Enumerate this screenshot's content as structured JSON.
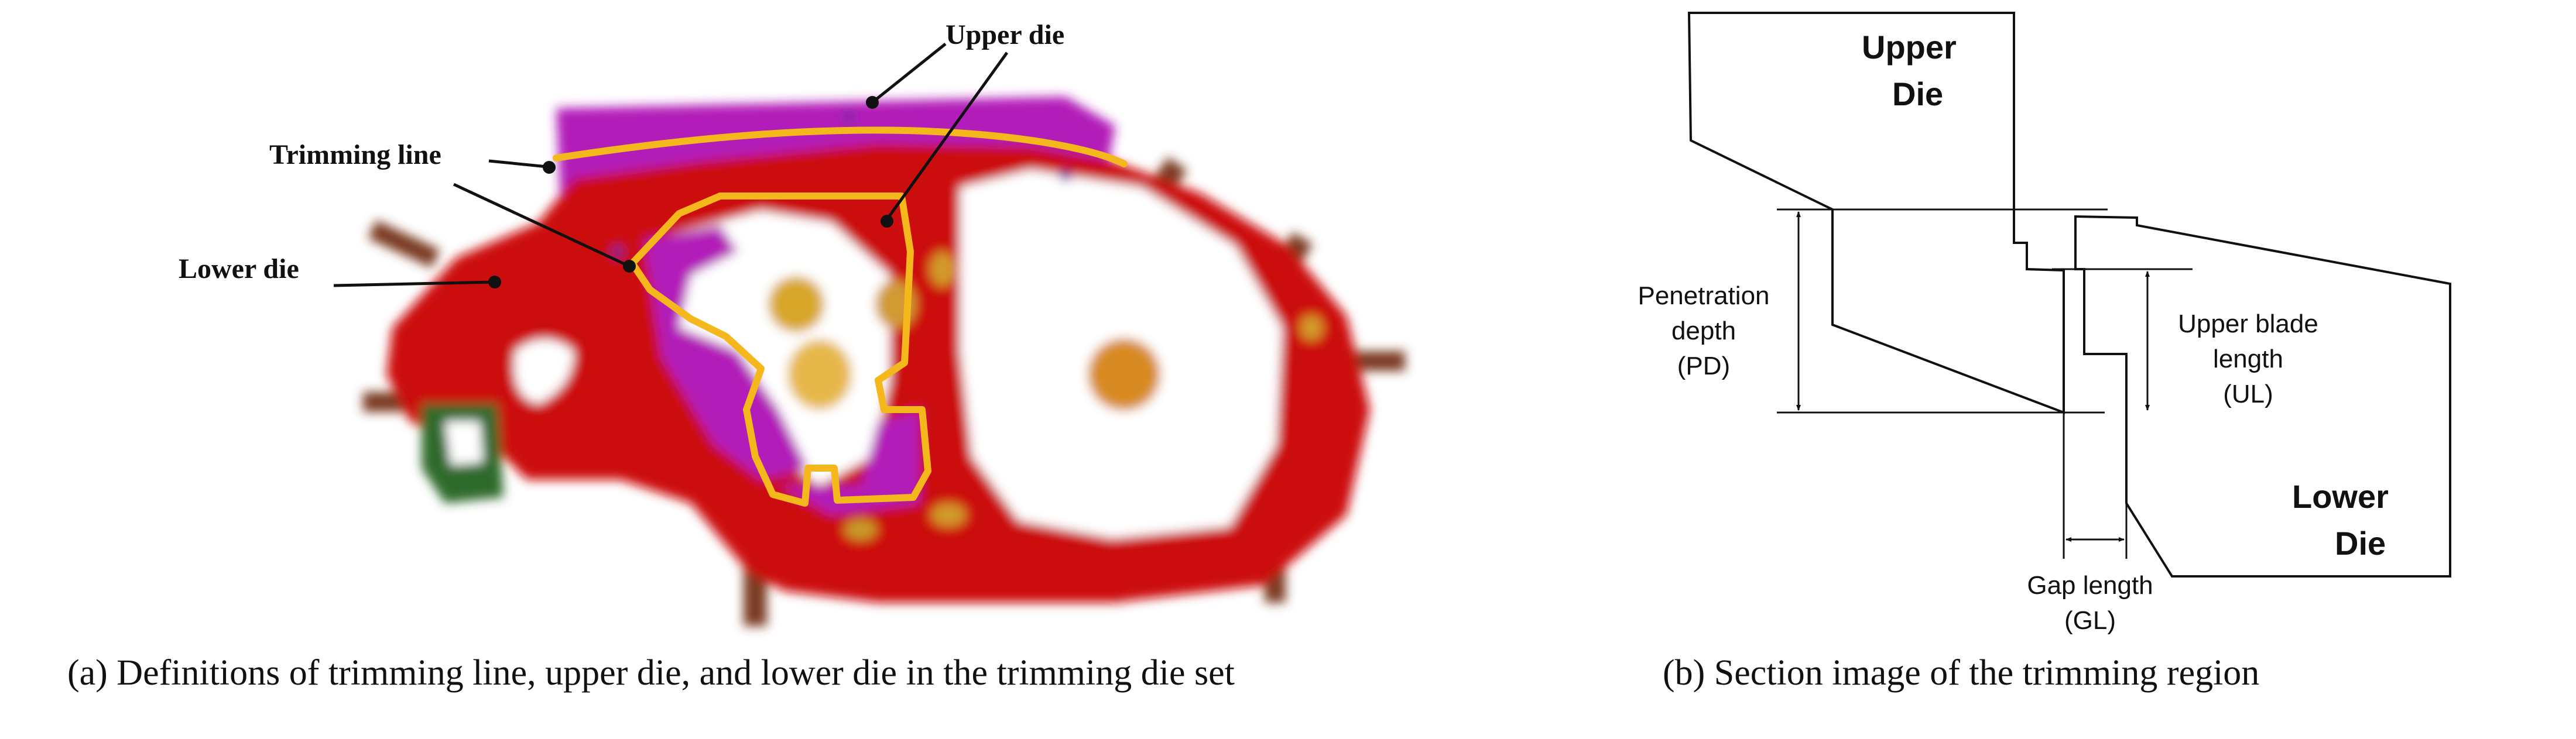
{
  "panel_a": {
    "labels": {
      "upper_die": "Upper die",
      "trimming_line": "Trimming line",
      "lower_die": "Lower die"
    },
    "caption": "(a) Definitions of trimming line, upper die, and lower die in the trimming die set",
    "colors": {
      "lower_die": "#cc1010",
      "upper_die": "#b21fb8",
      "trimming_line": "#f5b81c"
    }
  },
  "panel_b": {
    "labels": {
      "upper_die_line1": "Upper",
      "upper_die_line2": "Die",
      "lower_die_line1": "Lower",
      "lower_die_line2": "Die",
      "pd_line1": "Penetration",
      "pd_line2": "depth",
      "pd_line3": "(PD)",
      "ul_line1": "Upper blade",
      "ul_line2": "length",
      "ul_line3": "(UL)",
      "gl_line1": "Gap length",
      "gl_line2": "(GL)"
    },
    "caption": "(b) Section image of the trimming region"
  }
}
